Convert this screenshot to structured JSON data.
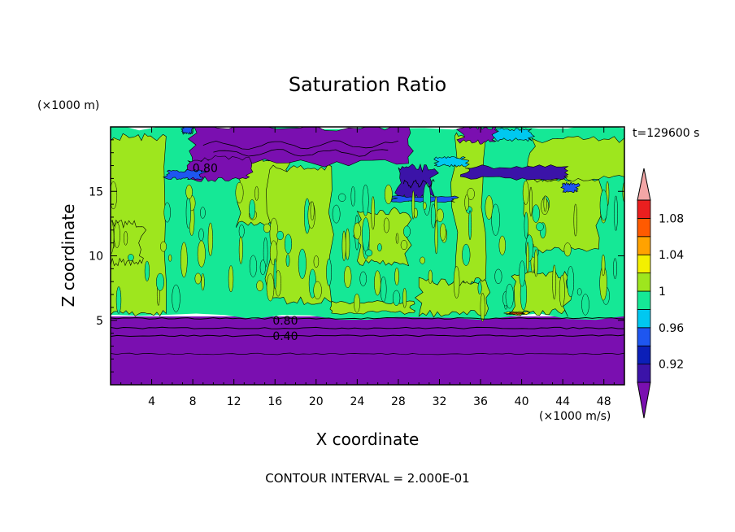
{
  "chart_data": {
    "type": "heatmap",
    "title": "Saturation Ratio",
    "xlabel": "X coordinate",
    "ylabel": "Z coordinate",
    "x_unit": "(×1000 m/s)",
    "y_unit": "(×1000 m)",
    "time_label": "t=129600 s",
    "footer": "CONTOUR INTERVAL = 2.000E-01",
    "xlim": [
      0,
      50
    ],
    "ylim": [
      0,
      20
    ],
    "x_ticks": [
      4,
      8,
      12,
      16,
      20,
      24,
      28,
      32,
      36,
      40,
      44,
      48
    ],
    "y_ticks": [
      5,
      10,
      15
    ],
    "colorbar": {
      "bands": [
        {
          "from": null,
          "to": 0.9,
          "color": "#7a0fb0"
        },
        {
          "from": 0.9,
          "to": 0.92,
          "color": "#3b13a8"
        },
        {
          "from": 0.92,
          "to": 0.94,
          "color": "#0b1fb8"
        },
        {
          "from": 0.94,
          "to": 0.96,
          "color": "#1e56f0"
        },
        {
          "from": 0.96,
          "to": 0.98,
          "color": "#00c8f0"
        },
        {
          "from": 0.98,
          "to": 1.0,
          "color": "#15e896"
        },
        {
          "from": 1.0,
          "to": 1.02,
          "color": "#9ee61e"
        },
        {
          "from": 1.02,
          "to": 1.04,
          "color": "#f3f000"
        },
        {
          "from": 1.04,
          "to": 1.06,
          "color": "#ffa200"
        },
        {
          "from": 1.06,
          "to": 1.08,
          "color": "#ff5a00"
        },
        {
          "from": 1.08,
          "to": 1.1,
          "color": "#ea1f1f"
        },
        {
          "from": 1.1,
          "to": null,
          "color": "#f2a6a6"
        }
      ],
      "tick_labels": [
        "0.92",
        "0.96",
        "1",
        "1.04",
        "1.08"
      ],
      "tick_values": [
        0.92,
        0.96,
        1.0,
        1.04,
        1.08
      ]
    },
    "contour_labels": [
      {
        "text": "0.80",
        "x": 9.2,
        "z": 16.8
      },
      {
        "text": "0.80",
        "x": 17.0,
        "z": 5.0
      },
      {
        "text": "0.40",
        "x": 17.0,
        "z": 3.8
      }
    ],
    "regions": [
      {
        "band": 0,
        "x0": 0,
        "x1": 50,
        "z0": 0,
        "z1": 5.3
      },
      {
        "band": 5,
        "x0": 0,
        "x1": 50,
        "z0": 5.3,
        "z1": 20
      },
      {
        "band": 6,
        "x0": 0,
        "x1": 5.4,
        "z0": 5.6,
        "z1": 19.2
      },
      {
        "band": 6,
        "x0": 0,
        "x1": 3.2,
        "z0": 9.5,
        "z1": 12.5
      },
      {
        "band": 6,
        "x0": 12.2,
        "x1": 17.5,
        "z0": 12.5,
        "z1": 17.5
      },
      {
        "band": 6,
        "x0": 15.5,
        "x1": 21.5,
        "z0": 6.5,
        "z1": 16.8
      },
      {
        "band": 6,
        "x0": 21.5,
        "x1": 29.5,
        "z0": 5.6,
        "z1": 6.4
      },
      {
        "band": 6,
        "x0": 24.0,
        "x1": 29.0,
        "z0": 9.5,
        "z1": 13.5
      },
      {
        "band": 6,
        "x0": 30.0,
        "x1": 36.5,
        "z0": 5.5,
        "z1": 8.0
      },
      {
        "band": 6,
        "x0": 33.5,
        "x1": 36.5,
        "z0": 8.0,
        "z1": 19.5
      },
      {
        "band": 6,
        "x0": 39.0,
        "x1": 44.5,
        "z0": 5.6,
        "z1": 8.5
      },
      {
        "band": 6,
        "x0": 40.5,
        "x1": 47.5,
        "z0": 10.5,
        "z1": 16.0
      },
      {
        "band": 6,
        "x0": 41.0,
        "x1": 50.0,
        "z0": 16.0,
        "z1": 19.0
      },
      {
        "band": 7,
        "x0": 38.5,
        "x1": 40.5,
        "z0": 5.45,
        "z1": 5.65
      },
      {
        "band": 9,
        "x0": 38.8,
        "x1": 40.2,
        "z0": 5.5,
        "z1": 5.6
      },
      {
        "band": 0,
        "x0": 8.0,
        "x1": 29.0,
        "z0": 17.2,
        "z1": 20
      },
      {
        "band": 0,
        "x0": 7.5,
        "x1": 13.5,
        "z0": 16.0,
        "z1": 17.5
      },
      {
        "band": 0,
        "x0": 34.0,
        "x1": 37.5,
        "z0": 18.8,
        "z1": 20
      },
      {
        "band": 1,
        "x0": 28.0,
        "x1": 31.5,
        "z0": 14.5,
        "z1": 16.8
      },
      {
        "band": 1,
        "x0": 34.5,
        "x1": 44.5,
        "z0": 16.0,
        "z1": 16.9
      },
      {
        "band": 3,
        "x0": 7.0,
        "x1": 8.0,
        "z0": 19.5,
        "z1": 20
      },
      {
        "band": 3,
        "x0": 5.5,
        "x1": 9.0,
        "z0": 16.0,
        "z1": 16.6
      },
      {
        "band": 3,
        "x0": 27.5,
        "x1": 33.5,
        "z0": 14.2,
        "z1": 14.6
      },
      {
        "band": 3,
        "x0": 44.0,
        "x1": 45.5,
        "z0": 15.0,
        "z1": 15.6
      },
      {
        "band": 4,
        "x0": 31.5,
        "x1": 34.5,
        "z0": 17.0,
        "z1": 17.6
      },
      {
        "band": 4,
        "x0": 37.5,
        "x1": 41.0,
        "z0": 19.0,
        "z1": 19.8
      }
    ]
  }
}
